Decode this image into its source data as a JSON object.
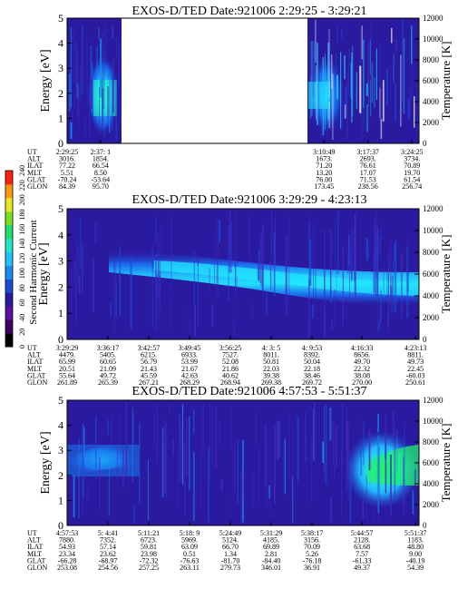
{
  "colors": {
    "background_plot": "#2a1aa0",
    "white": "#ffffff",
    "band_cyan": "#22d8ff",
    "band_green": "#22e08a",
    "band_blue": "#1a6cf0",
    "frame": "#000000"
  },
  "colorbar": {
    "label": "Second Harmonic Current",
    "ticks": [
      "0",
      "20",
      "40",
      "60",
      "80",
      "100",
      "120",
      "140",
      "160",
      "180",
      "200",
      "220",
      "240"
    ],
    "colors": [
      "#000000",
      "#3a0064",
      "#5a10a0",
      "#2a1aa0",
      "#1a4cd8",
      "#1a8cf0",
      "#22c4ff",
      "#22e8c8",
      "#22e070",
      "#7ae020",
      "#e8e820",
      "#ff9a10",
      "#ff2010"
    ]
  },
  "row_labels": [
    "UT",
    "ALT",
    "ILAT",
    "MLT",
    "GLAT",
    "GLON"
  ],
  "chart_data": [
    {
      "type": "heatmap",
      "title": "EXOS-D/TED   Date:921006  2:29:25 - 3:29:21",
      "ylabel": "Energy [eV]",
      "ylabel_right": "Temperature [K]",
      "ylim": [
        0,
        5
      ],
      "yticks": [
        "0",
        "1",
        "2",
        "3",
        "4",
        "5"
      ],
      "ylim_right": [
        0,
        12000
      ],
      "yticks_right": [
        "0",
        "2000",
        "4000",
        "6000",
        "8000",
        "10000",
        "12000"
      ],
      "data_gaps": [
        [
          0.12,
          0.73
        ]
      ],
      "columns": [
        {
          "pos": 0.0,
          "UT": "2:29:25",
          "ALT": "3016.",
          "ILAT": "77.22",
          "MLT": "5.51",
          "GLAT": "-70.24",
          "GLON": "84.39"
        },
        {
          "pos": 0.095,
          "UT": "2:37: 1",
          "ALT": "1854.",
          "ILAT": "66.54",
          "MLT": "8.50",
          "GLAT": "-53.64",
          "GLON": "95.70"
        },
        {
          "pos": 0.73,
          "UT": "3:10:49",
          "ALT": "1673.",
          "ILAT": "71.20",
          "MLT": "13.20",
          "GLAT": "76.00",
          "GLON": "173.45"
        },
        {
          "pos": 0.855,
          "UT": "3:17:37",
          "ALT": "2693.",
          "ILAT": "76.61",
          "MLT": "17.07",
          "GLAT": "71.53",
          "GLON": "238.56"
        },
        {
          "pos": 0.98,
          "UT": "3:24:25",
          "ALT": "3734.",
          "ILAT": "70.89",
          "MLT": "19.70",
          "GLAT": "61.54",
          "GLON": "256.74"
        }
      ]
    },
    {
      "type": "heatmap",
      "title": "EXOS-D/TED   Date:921006  3:29:29 - 4:23:13",
      "ylabel": "Energy [eV]",
      "ylabel_right": "Temperature [K]",
      "ylim": [
        0,
        5
      ],
      "yticks": [
        "0",
        "1",
        "2",
        "3",
        "4",
        "5"
      ],
      "ylim_right": [
        0,
        12000
      ],
      "yticks_right": [
        "0",
        "2000",
        "4000",
        "6000",
        "8000",
        "10000",
        "12000"
      ],
      "data_gaps": [],
      "columns": [
        {
          "pos": 0.0,
          "UT": "3:29:29",
          "ALT": "4479.",
          "ILAT": "65.99",
          "MLT": "20.51",
          "GLAT": "55.64",
          "GLON": "261.89"
        },
        {
          "pos": 0.116,
          "UT": "3:36:17",
          "ALT": "5405.",
          "ILAT": "60.65",
          "MLT": "21.09",
          "GLAT": "49.72",
          "GLON": "265.39"
        },
        {
          "pos": 0.232,
          "UT": "3:42:57",
          "ALT": "6215.",
          "ILAT": "56.79",
          "MLT": "21.43",
          "GLAT": "45.59",
          "GLON": "267.21"
        },
        {
          "pos": 0.348,
          "UT": "3:49:45",
          "ALT": "6933.",
          "ILAT": "53.99",
          "MLT": "21.67",
          "GLAT": "42.63",
          "GLON": "268.29"
        },
        {
          "pos": 0.464,
          "UT": "3:56:25",
          "ALT": "7527.",
          "ILAT": "52.08",
          "MLT": "21.86",
          "GLAT": "40.62",
          "GLON": "268.94"
        },
        {
          "pos": 0.58,
          "UT": "4: 3: 5",
          "ALT": "8011.",
          "ILAT": "50.81",
          "MLT": "22.03",
          "GLAT": "39.38",
          "GLON": "269.38"
        },
        {
          "pos": 0.696,
          "UT": "4: 9:53",
          "ALT": "8392.",
          "ILAT": "50.04",
          "MLT": "22.18",
          "GLAT": "38.46",
          "GLON": "269.72"
        },
        {
          "pos": 0.838,
          "UT": "4:16:33",
          "ALT": "8656.",
          "ILAT": "49.70",
          "MLT": "22.32",
          "GLAT": "38.08",
          "GLON": "270.00"
        },
        {
          "pos": 0.99,
          "UT": "4:23:13",
          "ALT": "8811.",
          "ILAT": "49.73",
          "MLT": "22.45",
          "GLAT": "-60.03",
          "GLON": "250.61"
        }
      ]
    },
    {
      "type": "heatmap",
      "title": "EXOS-D/TED   Date:921006  4:57:53 - 5:51:37",
      "ylabel": "Energy [eV]",
      "ylabel_right": "Temperature [K]",
      "ylim": [
        0,
        5
      ],
      "yticks": [
        "0",
        "1",
        "2",
        "3",
        "4",
        "5"
      ],
      "ylim_right": [
        0,
        12000
      ],
      "yticks_right": [
        "0",
        "2000",
        "4000",
        "6000",
        "8000",
        "10000",
        "12000"
      ],
      "data_gaps": [],
      "columns": [
        {
          "pos": 0.0,
          "UT": "4:57:53",
          "ALT": "7880.",
          "ILAT": "54.93",
          "MLT": "23.34",
          "GLAT": "-66.28",
          "GLON": "253.08"
        },
        {
          "pos": 0.116,
          "UT": "5: 4:41",
          "ALT": "7352.",
          "ILAT": "57.14",
          "MLT": "23.62",
          "GLAT": "-68.97",
          "GLON": "254.56"
        },
        {
          "pos": 0.232,
          "UT": "5:11:21",
          "ALT": "6723.",
          "ILAT": "59.81",
          "MLT": "23.98",
          "GLAT": "-72.32",
          "GLON": "257.25"
        },
        {
          "pos": 0.348,
          "UT": "5:18: 9",
          "ALT": "5969.",
          "ILAT": "63.09",
          "MLT": "0.51",
          "GLAT": "-76.63",
          "GLON": "263.11"
        },
        {
          "pos": 0.464,
          "UT": "5:24:49",
          "ALT": "5124.",
          "ILAT": "66.70",
          "MLT": "1.34",
          "GLAT": "-81.70",
          "GLON": "279.73"
        },
        {
          "pos": 0.58,
          "UT": "5:31:29",
          "ALT": "4185.",
          "ILAT": "69.89",
          "MLT": "2.81",
          "GLAT": "-84.40",
          "GLON": "346.01"
        },
        {
          "pos": 0.696,
          "UT": "5:38:17",
          "ALT": "3156.",
          "ILAT": "70.09",
          "MLT": "5.26",
          "GLAT": "-76.18",
          "GLON": "36.91"
        },
        {
          "pos": 0.838,
          "UT": "5:44:57",
          "ALT": "2128.",
          "ILAT": "63.68",
          "MLT": "7.57",
          "GLAT": "-61.33",
          "GLON": "49.37"
        },
        {
          "pos": 0.99,
          "UT": "5:51:37",
          "ALT": "1183.",
          "ILAT": "48.80",
          "MLT": "9.00",
          "GLAT": "-40.19",
          "GLON": "54.39"
        }
      ]
    }
  ]
}
